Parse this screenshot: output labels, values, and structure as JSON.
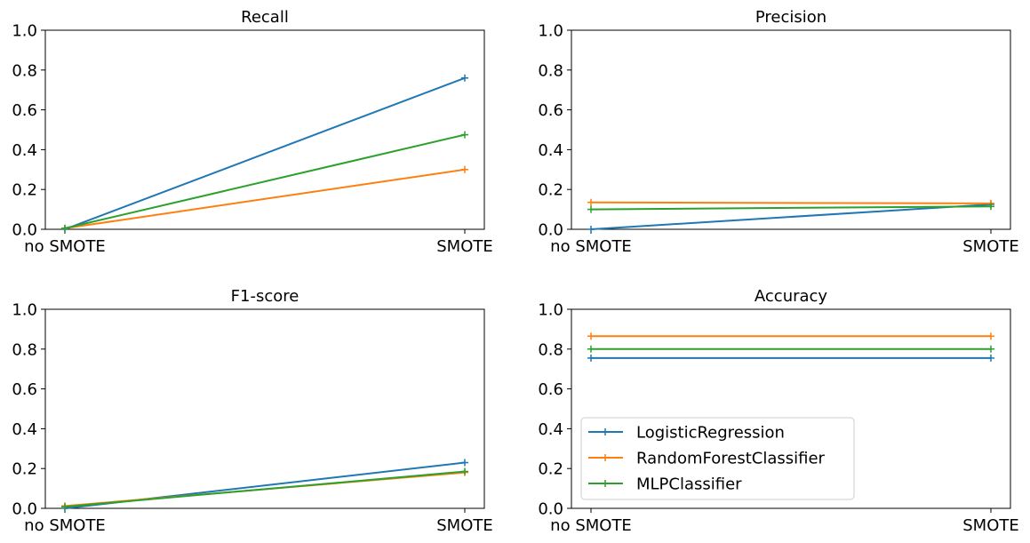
{
  "chart_data": [
    {
      "type": "line",
      "title": "Recall",
      "categories": [
        "no SMOTE",
        "SMOTE"
      ],
      "ylim": [
        0,
        1
      ],
      "yticks": [
        "0.0",
        "0.2",
        "0.4",
        "0.6",
        "0.8",
        "1.0"
      ],
      "grid": false,
      "series": [
        {
          "name": "LogisticRegression",
          "values": [
            0.0,
            0.76
          ]
        },
        {
          "name": "RandomForestClassifier",
          "values": [
            0.005,
            0.3
          ]
        },
        {
          "name": "MLPClassifier",
          "values": [
            0.005,
            0.475
          ]
        }
      ]
    },
    {
      "type": "line",
      "title": "Precision",
      "categories": [
        "no SMOTE",
        "SMOTE"
      ],
      "ylim": [
        0,
        1
      ],
      "yticks": [
        "0.0",
        "0.2",
        "0.4",
        "0.6",
        "0.8",
        "1.0"
      ],
      "grid": false,
      "series": [
        {
          "name": "LogisticRegression",
          "values": [
            0.0,
            0.125
          ]
        },
        {
          "name": "RandomForestClassifier",
          "values": [
            0.135,
            0.13
          ]
        },
        {
          "name": "MLPClassifier",
          "values": [
            0.1,
            0.115
          ]
        }
      ]
    },
    {
      "type": "line",
      "title": "F1-score",
      "categories": [
        "no SMOTE",
        "SMOTE"
      ],
      "ylim": [
        0,
        1
      ],
      "yticks": [
        "0.0",
        "0.2",
        "0.4",
        "0.6",
        "0.8",
        "1.0"
      ],
      "grid": false,
      "series": [
        {
          "name": "LogisticRegression",
          "values": [
            0.0,
            0.23
          ]
        },
        {
          "name": "RandomForestClassifier",
          "values": [
            0.012,
            0.18
          ]
        },
        {
          "name": "MLPClassifier",
          "values": [
            0.008,
            0.185
          ]
        }
      ]
    },
    {
      "type": "line",
      "title": "Accuracy",
      "categories": [
        "no SMOTE",
        "SMOTE"
      ],
      "ylim": [
        0,
        1
      ],
      "yticks": [
        "0.0",
        "0.2",
        "0.4",
        "0.6",
        "0.8",
        "1.0"
      ],
      "grid": false,
      "legend": "lower-left",
      "series": [
        {
          "name": "LogisticRegression",
          "values": [
            0.755,
            0.755
          ]
        },
        {
          "name": "RandomForestClassifier",
          "values": [
            0.865,
            0.865
          ]
        },
        {
          "name": "MLPClassifier",
          "values": [
            0.8,
            0.8
          ]
        }
      ]
    }
  ],
  "colors": {
    "LogisticRegression": "#1f77b4",
    "RandomForestClassifier": "#ff7f0e",
    "MLPClassifier": "#2ca02c"
  }
}
